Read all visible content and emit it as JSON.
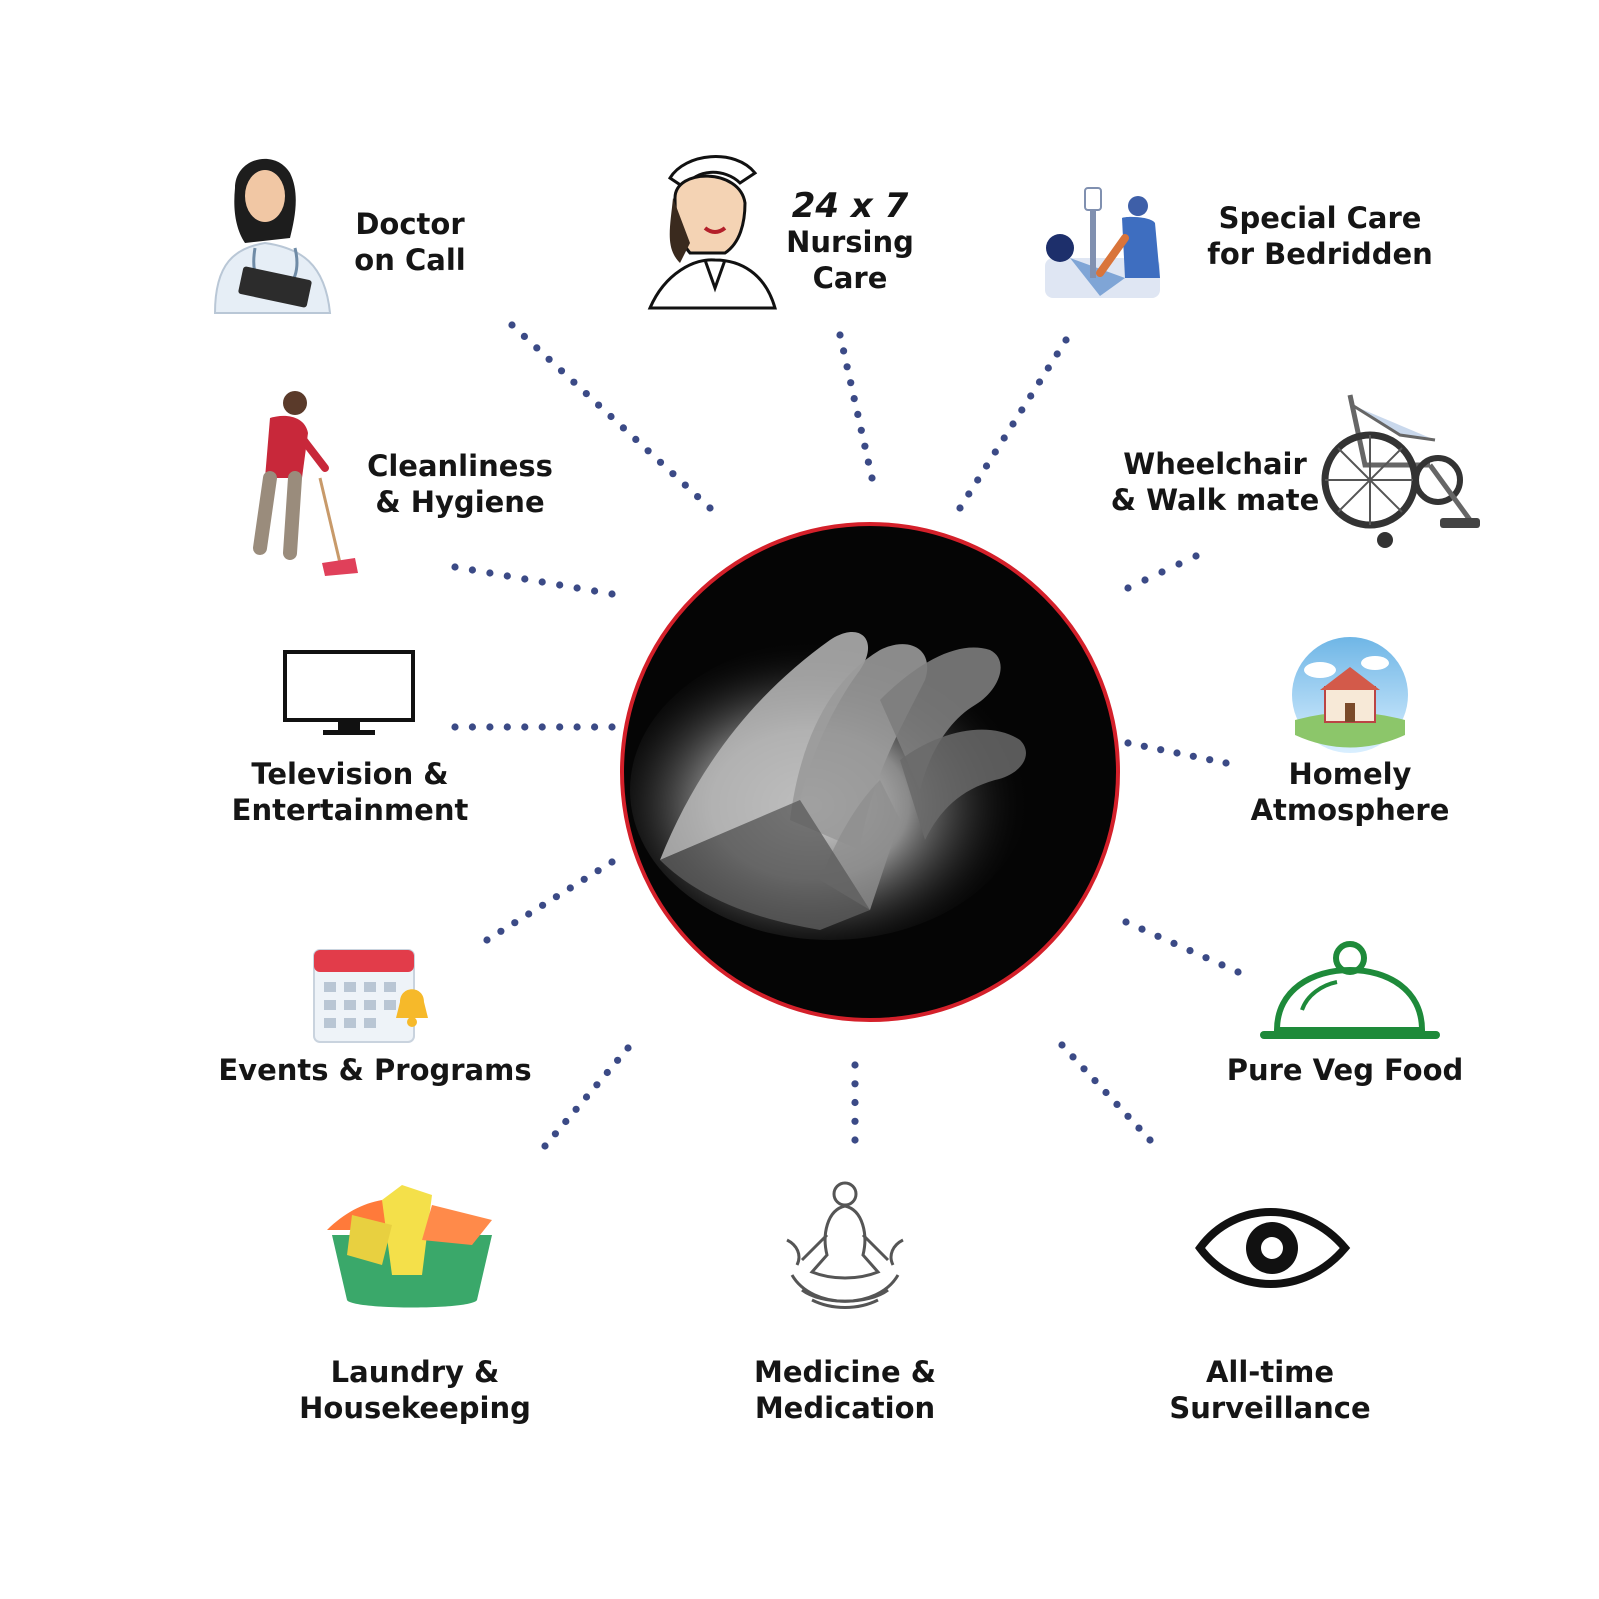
{
  "colors": {
    "connector": "#3b4a86",
    "ring": "#d4202a",
    "center_fill": "#050505",
    "text": "#151515"
  },
  "center": {
    "image": "elderly-hands-held-photo"
  },
  "services": [
    {
      "id": "doctor",
      "lines": [
        "Doctor",
        "on Call"
      ],
      "icon": "doctor-icon"
    },
    {
      "id": "nursing",
      "lines": [
        "24 x 7",
        "Nursing",
        "Care"
      ],
      "icon": "nurse-icon"
    },
    {
      "id": "bedridden",
      "lines": [
        "Special Care",
        "for Bedridden"
      ],
      "icon": "bedridden-care-icon"
    },
    {
      "id": "cleanliness",
      "lines": [
        "Cleanliness",
        "& Hygiene"
      ],
      "icon": "cleaner-icon"
    },
    {
      "id": "wheelchair",
      "lines": [
        "Wheelchair",
        "& Walk mate"
      ],
      "icon": "wheelchair-icon"
    },
    {
      "id": "television",
      "lines": [
        "Television &",
        "Entertainment"
      ],
      "icon": "television-icon"
    },
    {
      "id": "homely",
      "lines": [
        "Homely",
        "Atmosphere"
      ],
      "icon": "house-icon"
    },
    {
      "id": "events",
      "lines": [
        "Events & Programs"
      ],
      "icon": "calendar-icon"
    },
    {
      "id": "food",
      "lines": [
        "Pure Veg Food"
      ],
      "icon": "food-cloche-icon"
    },
    {
      "id": "laundry",
      "lines": [
        "Laundry &",
        "Housekeeping"
      ],
      "icon": "laundry-basket-icon"
    },
    {
      "id": "medicine",
      "lines": [
        "Medicine &",
        "Medication"
      ],
      "icon": "meditation-icon"
    },
    {
      "id": "surveillance",
      "lines": [
        "All-time",
        "Surveillance"
      ],
      "icon": "eye-icon"
    }
  ]
}
